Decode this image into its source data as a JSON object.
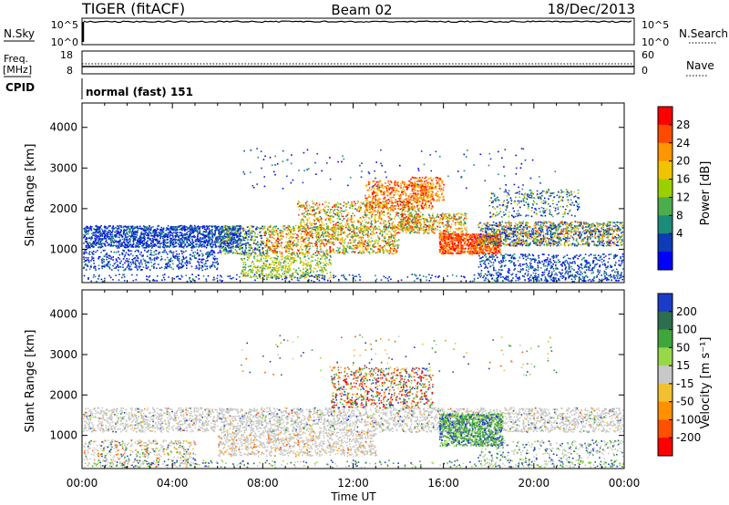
{
  "header": {
    "station": "TIGER (fitACF)",
    "beam": "Beam 02",
    "date": "18/Dec/2013"
  },
  "top_panels": {
    "nsky_label": "N.Sky",
    "nsearch_label": "N.Search",
    "nsky_ticks": [
      "10^5",
      "10^0"
    ],
    "nsearch_ticks": [
      "10^5",
      "10^0"
    ],
    "freq_label_1": "Freq.",
    "freq_label_2": "[MHz]",
    "freq_ticks": [
      "18",
      "8"
    ],
    "nave_label": "Nave",
    "nave_ticks": [
      "60",
      "0"
    ],
    "cpid_label": "CPID",
    "cpid_text": "normal (fast) 151"
  },
  "chart_data": [
    {
      "type": "heatmap",
      "name": "power",
      "ylabel": "Slant Range [km]",
      "ylim": [
        180,
        4600
      ],
      "yticks": [
        1000,
        2000,
        3000,
        4000
      ],
      "xlabel": "Time UT",
      "xlim_hours": [
        0,
        24
      ],
      "xticks": [
        "00:00",
        "04:00",
        "08:00",
        "12:00",
        "16:00",
        "20:00",
        "00:00"
      ],
      "colorbar": {
        "label": "Power [dB]",
        "ticks": [
          "28",
          "24",
          "20",
          "16",
          "12",
          "8",
          "4"
        ],
        "colors": [
          "#ff0000",
          "#ff4a00",
          "#ff9500",
          "#f0c300",
          "#9bd000",
          "#4bad4b",
          "#1c8c7a",
          "#0d3cb4",
          "#0000ff"
        ]
      }
    },
    {
      "type": "heatmap",
      "name": "velocity",
      "ylabel": "Slant Range [km]",
      "ylim": [
        180,
        4600
      ],
      "yticks": [
        1000,
        2000,
        3000,
        4000
      ],
      "xlabel": "Time UT",
      "xlim_hours": [
        0,
        24
      ],
      "xticks": [
        "00:00",
        "04:00",
        "08:00",
        "12:00",
        "16:00",
        "20:00",
        "00:00"
      ],
      "colorbar": {
        "label": "Velocity [m s⁻¹]",
        "ticks": [
          "200",
          "100",
          "50",
          "15",
          "-15",
          "-50",
          "-100",
          "-200"
        ],
        "colors": [
          "#1a3cc8",
          "#2d6e4e",
          "#3fa63c",
          "#96d848",
          "#c8c8c8",
          "#f0c030",
          "#ff9000",
          "#ff5000",
          "#ff0000"
        ]
      }
    }
  ],
  "colors": {
    "grey_scatter": "#c8c8c8",
    "axis": "#000000"
  }
}
